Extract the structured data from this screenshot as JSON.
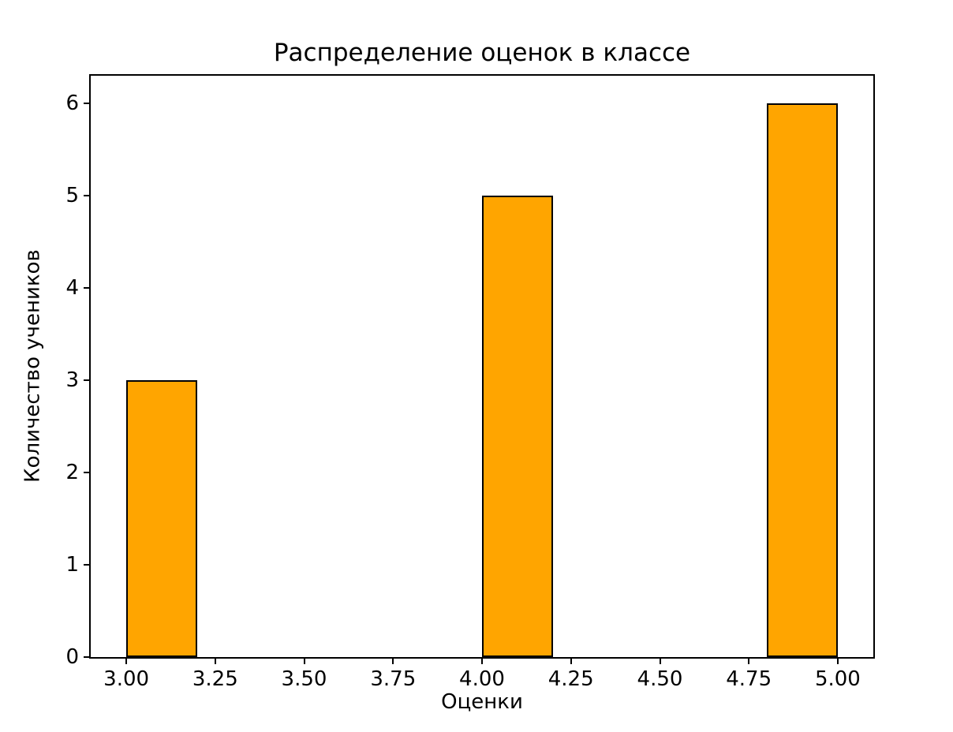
{
  "chart_data": {
    "type": "bar",
    "title": "Распределение оценок в классе",
    "xlabel": "Оценки",
    "ylabel": "Количество учеников",
    "bars": [
      {
        "x_start": 3.0,
        "x_end": 3.2,
        "value": 3
      },
      {
        "x_start": 4.0,
        "x_end": 4.2,
        "value": 5
      },
      {
        "x_start": 4.8,
        "x_end": 5.0,
        "value": 6
      }
    ],
    "values": [
      3,
      5,
      6
    ],
    "x_ticks": [
      3.0,
      3.25,
      3.5,
      3.75,
      4.0,
      4.25,
      4.5,
      4.75,
      5.0
    ],
    "x_tick_labels": [
      "3.00",
      "3.25",
      "3.50",
      "3.75",
      "4.00",
      "4.25",
      "4.50",
      "4.75",
      "5.00"
    ],
    "y_ticks": [
      0,
      1,
      2,
      3,
      4,
      5,
      6
    ],
    "y_tick_labels": [
      "0",
      "1",
      "2",
      "3",
      "4",
      "5",
      "6"
    ],
    "xlim": [
      2.9,
      5.1
    ],
    "ylim": [
      0,
      6.3
    ],
    "bar_color": "#FFA500",
    "bar_edge_color": "#000000",
    "background_color": "#FFFFFF",
    "grid": false,
    "legend": null
  }
}
